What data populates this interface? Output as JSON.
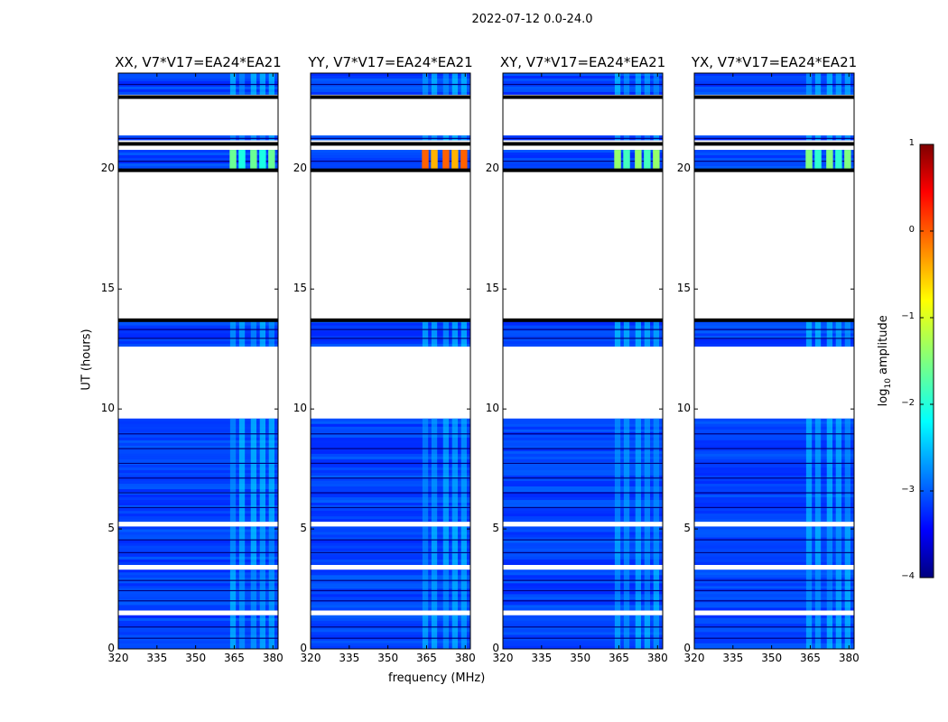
{
  "suptitle": "2022-07-12 0.0-24.0",
  "chart_data": {
    "type": "heatmap",
    "title": "2022-07-12 0.0-24.0",
    "xlabel": "frequency (MHz)",
    "ylabel": "UT (hours)",
    "xlim": [
      320,
      382
    ],
    "ylim": [
      0,
      24
    ],
    "xticks": [
      "320",
      "335",
      "350",
      "365",
      "380"
    ],
    "yticks": [
      "0",
      "5",
      "10",
      "15",
      "20"
    ],
    "colorbar": {
      "label": "log10 amplitude",
      "label_base": "log",
      "label_sub": "10",
      "label_rest": " amplitude",
      "range": [
        -4,
        1
      ],
      "ticks": [
        "1",
        "0",
        "−1",
        "−2",
        "−3",
        "−4"
      ],
      "colormap": "jet"
    },
    "panels": [
      {
        "title": "XX, V7*V17=EA24*EA21",
        "pol": "XX",
        "bright_band": [
          20.0,
          20.8
        ],
        "bright_level": -1.6
      },
      {
        "title": "YY, V7*V17=EA24*EA21",
        "pol": "YY",
        "bright_band": [
          20.0,
          20.8
        ],
        "bright_level": -0.1
      },
      {
        "title": "XY, V7*V17=EA24*EA21",
        "pol": "XY",
        "bright_band": [
          20.0,
          20.8
        ],
        "bright_level": -1.4
      },
      {
        "title": "YX, V7*V17=EA24*EA21",
        "pol": "YX",
        "bright_band": [
          20.0,
          20.8
        ],
        "bright_level": -1.5
      }
    ],
    "data_time_ranges_hours": [
      [
        0.0,
        1.4
      ],
      [
        1.6,
        3.3
      ],
      [
        3.5,
        5.1
      ],
      [
        5.3,
        9.6
      ],
      [
        12.6,
        13.7
      ],
      [
        19.9,
        20.8
      ],
      [
        21.2,
        21.4
      ],
      [
        23.1,
        24.0
      ]
    ],
    "rfi_frequency_band_mhz": [
      363,
      382
    ]
  }
}
